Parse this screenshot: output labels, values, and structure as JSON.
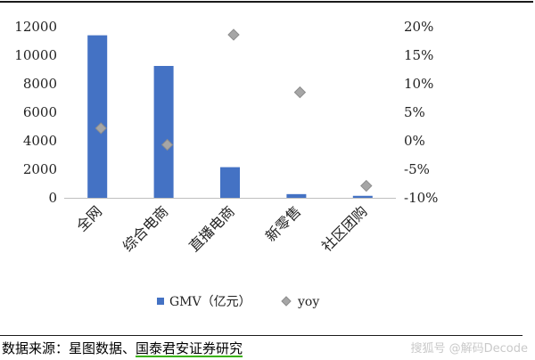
{
  "chart_data": {
    "type": "bar",
    "categories": [
      "全网",
      "综合电商",
      "直播电商",
      "新零售",
      "社区团购"
    ],
    "series": [
      {
        "name": "GMV（亿元）",
        "type": "bar",
        "axis": "left",
        "values": [
          11400,
          9250,
          2150,
          260,
          140
        ]
      },
      {
        "name": "yoy",
        "type": "scatter",
        "axis": "right",
        "values": [
          2.2,
          -0.7,
          18.6,
          8.5,
          -7.9
        ]
      }
    ],
    "left_axis": {
      "ylim": [
        0,
        12000
      ],
      "ticks": [
        "0",
        "2000",
        "4000",
        "6000",
        "8000",
        "10000",
        "12000"
      ]
    },
    "right_axis": {
      "ylim": [
        -10,
        20
      ],
      "ticks": [
        "-10%",
        "-5%",
        "0%",
        "5%",
        "10%",
        "15%",
        "20%"
      ]
    },
    "grid": false,
    "legend_position": "bottom",
    "colors": {
      "bar": "#4472c4",
      "marker": "#a6a6a6",
      "marker_edge": "#8c8c8c"
    }
  },
  "legend": {
    "gmv_label": "GMV（亿元）",
    "yoy_label": "yoy"
  },
  "source_prefix": "数据来源：星图数据、",
  "source_publisher": "国泰君安证券研究",
  "watermark": "搜狐号 @解码Decode"
}
